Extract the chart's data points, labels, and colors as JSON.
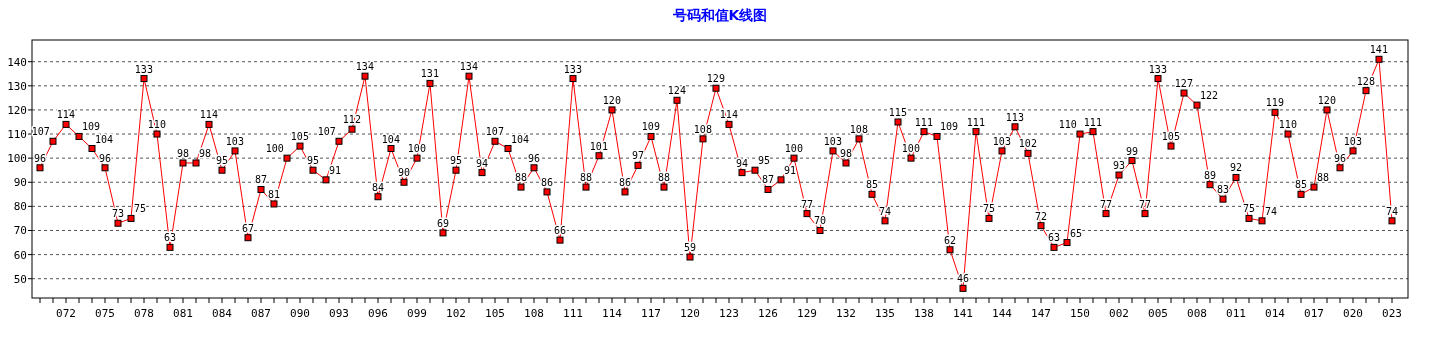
{
  "chart_data": {
    "type": "line",
    "title": "号码和值K线图",
    "categories": [
      null,
      null,
      "072",
      null,
      null,
      "075",
      null,
      null,
      "078",
      null,
      null,
      "081",
      null,
      null,
      "084",
      null,
      null,
      "087",
      null,
      null,
      "090",
      null,
      null,
      "093",
      null,
      null,
      "096",
      null,
      null,
      "099",
      null,
      null,
      "102",
      null,
      null,
      "105",
      null,
      null,
      "108",
      null,
      null,
      "111",
      null,
      null,
      "114",
      null,
      null,
      "117",
      null,
      null,
      "120",
      null,
      null,
      "123",
      null,
      null,
      "126",
      null,
      null,
      "129",
      null,
      null,
      "132",
      null,
      null,
      "135",
      null,
      null,
      "138",
      null,
      null,
      "141",
      null,
      null,
      "144",
      null,
      null,
      "147",
      null,
      null,
      "150",
      null,
      null,
      "002",
      null,
      null,
      "005",
      null,
      null,
      "008",
      null,
      null,
      "011",
      null,
      null,
      "014",
      null,
      null,
      "017",
      null,
      null,
      "020",
      null,
      null,
      "023"
    ],
    "values": [
      96,
      107,
      114,
      109,
      104,
      96,
      73,
      75,
      133,
      110,
      63,
      98,
      98,
      114,
      95,
      103,
      67,
      87,
      81,
      100,
      105,
      95,
      91,
      107,
      112,
      134,
      84,
      104,
      90,
      100,
      131,
      69,
      95,
      134,
      94,
      107,
      104,
      88,
      96,
      86,
      66,
      133,
      88,
      101,
      120,
      86,
      97,
      109,
      88,
      124,
      59,
      108,
      129,
      114,
      94,
      95,
      87,
      91,
      100,
      77,
      70,
      103,
      98,
      108,
      85,
      74,
      115,
      100,
      111,
      109,
      62,
      46,
      111,
      75,
      103,
      113,
      102,
      72,
      63,
      65,
      110,
      111,
      77,
      93,
      99,
      77,
      133,
      105,
      127,
      122,
      89,
      83,
      92,
      75,
      74,
      119,
      110,
      85,
      88,
      120,
      96,
      103,
      128,
      141,
      74
    ],
    "color": "#ff0000",
    "ylim": [
      42,
      149
    ],
    "yticks": [
      50,
      60,
      70,
      80,
      90,
      100,
      110,
      120,
      130,
      140
    ],
    "grid": "y",
    "data_labels": true,
    "marker": "square"
  }
}
